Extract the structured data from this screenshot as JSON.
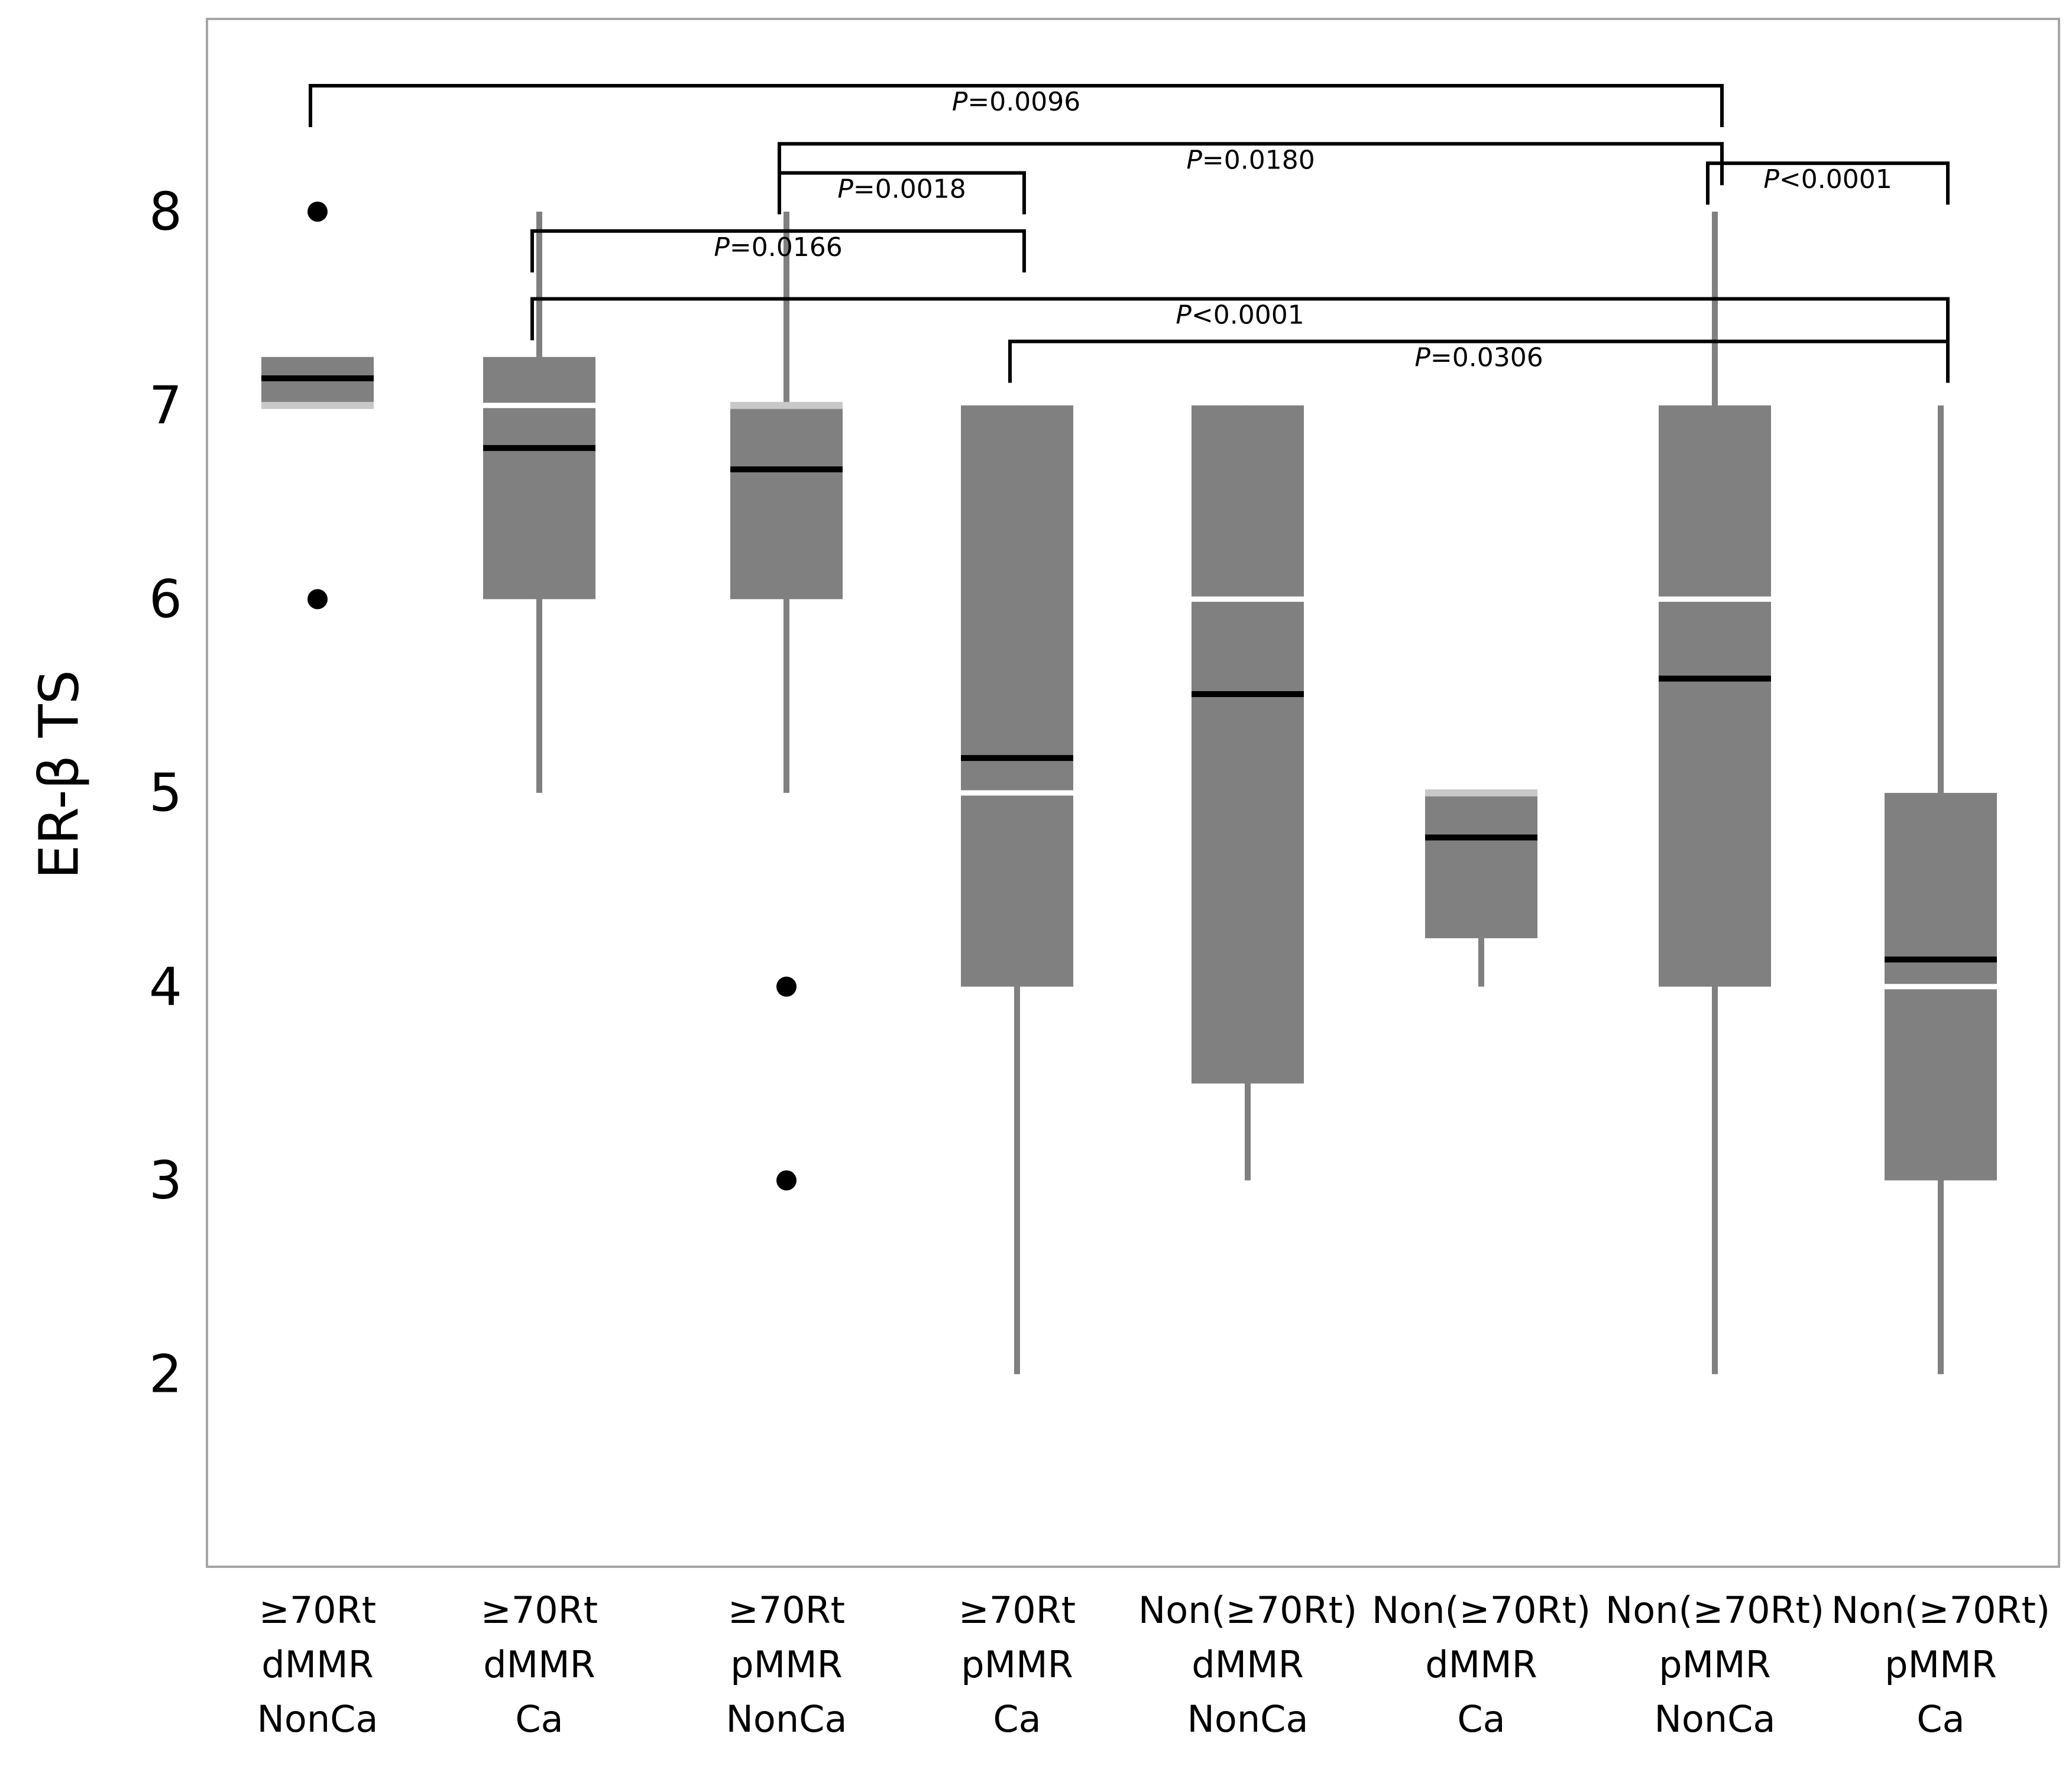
{
  "chart_data": {
    "type": "box",
    "ylabel": "ER-β TS",
    "ylim": [
      1,
      9
    ],
    "yticks": [
      2,
      3,
      4,
      5,
      6,
      7,
      8
    ],
    "categories": [
      {
        "lines": [
          "≥70Rt",
          "dMMR",
          "NonCa"
        ]
      },
      {
        "lines": [
          "≥70Rt",
          "dMMR",
          "Ca"
        ]
      },
      {
        "lines": [
          "≥70Rt",
          "pMMR",
          "NonCa"
        ]
      },
      {
        "lines": [
          "≥70Rt",
          "pMMR",
          "Ca"
        ]
      },
      {
        "lines": [
          "Non(≥70Rt)",
          "dMMR",
          "NonCa"
        ]
      },
      {
        "lines": [
          "Non(≥70Rt)",
          "dMMR",
          "Ca"
        ]
      },
      {
        "lines": [
          "Non(≥70Rt)",
          "pMMR",
          "NonCa"
        ]
      },
      {
        "lines": [
          "Non(≥70Rt)",
          "pMMR",
          "Ca"
        ]
      }
    ],
    "boxes": [
      {
        "q1": 7.0,
        "median": 7.0,
        "q3": 7.25,
        "mean": 7.14,
        "whisker_low": null,
        "whisker_high": null,
        "outliers": [
          8,
          6
        ]
      },
      {
        "q1": 6.0,
        "median": 7.0,
        "q3": 7.25,
        "mean": 6.78,
        "whisker_low": 5,
        "whisker_high": 8,
        "outliers": []
      },
      {
        "q1": 6.0,
        "median": 7.0,
        "q3": 7.0,
        "mean": 6.67,
        "whisker_low": 5,
        "whisker_high": 8,
        "outliers": [
          4,
          3
        ]
      },
      {
        "q1": 4.0,
        "median": 5.0,
        "q3": 7.0,
        "mean": 5.18,
        "whisker_low": 2,
        "whisker_high": 7,
        "outliers": []
      },
      {
        "q1": 3.5,
        "median": 6.0,
        "q3": 7.0,
        "mean": 5.51,
        "whisker_low": 3,
        "whisker_high": 7,
        "outliers": []
      },
      {
        "q1": 4.25,
        "median": 5.0,
        "q3": 5.0,
        "mean": 4.77,
        "whisker_low": 4,
        "whisker_high": 5,
        "outliers": []
      },
      {
        "q1": 4.0,
        "median": 6.0,
        "q3": 7.0,
        "mean": 5.59,
        "whisker_low": 2,
        "whisker_high": 8,
        "outliers": []
      },
      {
        "q1": 3.0,
        "median": 4.0,
        "q3": 5.0,
        "mean": 4.14,
        "whisker_low": 2,
        "whisker_high": 7,
        "outliers": []
      }
    ],
    "comparisons": [
      {
        "from": 0,
        "to": 6,
        "label": "P=0.0096",
        "level": 8.65
      },
      {
        "from": 2,
        "to": 6,
        "label": "P=0.0180",
        "level": 8.35
      },
      {
        "from": 2,
        "to": 3,
        "label": "P=0.0018",
        "level": 8.2
      },
      {
        "from": 6,
        "to": 7,
        "label": "P<0.0001",
        "level": 8.25
      },
      {
        "from": 1,
        "to": 3,
        "label": "P=0.0166",
        "level": 7.9
      },
      {
        "from": 1,
        "to": 7,
        "label": "P<0.0001",
        "level": 7.55
      },
      {
        "from": 3,
        "to": 7,
        "label": "P=0.0306",
        "level": 7.33
      }
    ]
  }
}
